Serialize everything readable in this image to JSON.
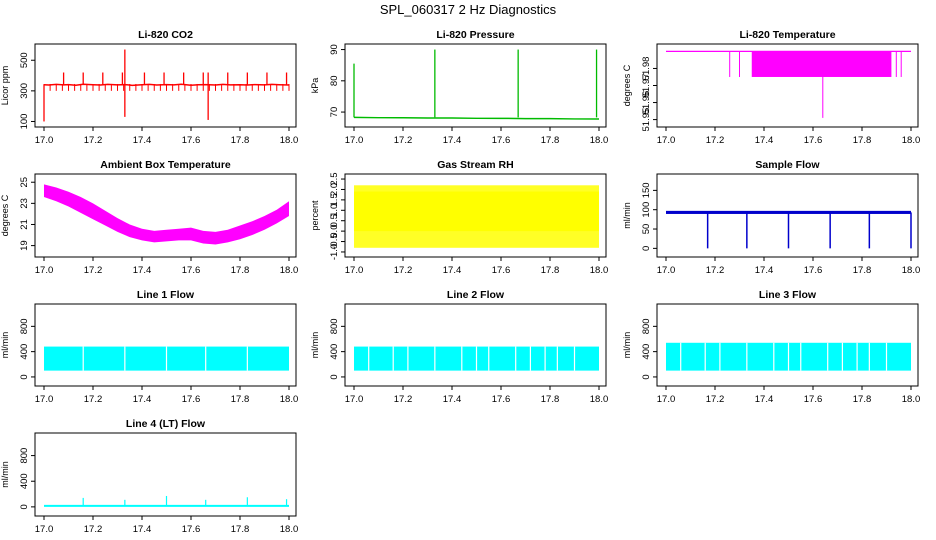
{
  "figure_title": "SPL_060317  2 Hz Diagnostics",
  "chart_data": [
    {
      "type": "line",
      "title": "Li-820 CO2",
      "ylabel": "Licor ppm",
      "color": "#ff0000",
      "x_ticks": [
        "17.0",
        "17.2",
        "17.4",
        "17.6",
        "17.8",
        "18.0"
      ],
      "x_range": [
        17.0,
        18.0
      ],
      "y_ticks": [
        {
          "v": 100,
          "label": "100"
        },
        {
          "v": 300,
          "label": "300"
        },
        {
          "v": 500,
          "label": "500"
        }
      ],
      "y_range": [
        90,
        580
      ],
      "series": {
        "x": [
          17.0,
          17.02,
          17.05,
          17.08,
          17.1,
          17.13,
          17.16,
          17.2,
          17.23,
          17.26,
          17.3,
          17.33,
          17.36,
          17.4,
          17.43,
          17.46,
          17.5,
          17.53,
          17.56,
          17.6,
          17.63,
          17.66,
          17.7,
          17.73,
          17.76,
          17.8,
          17.83,
          17.86,
          17.9,
          17.93,
          17.96,
          18.0
        ],
        "values": [
          340,
          338,
          342,
          339,
          341,
          337,
          343,
          340,
          338,
          342,
          339,
          341,
          336,
          340,
          342,
          338,
          341,
          339,
          343,
          337,
          340,
          341,
          338,
          342,
          339,
          340,
          338,
          341,
          339,
          342,
          340,
          338
        ],
        "spikes": [
          [
            17.0,
            100
          ],
          [
            17.08,
            420
          ],
          [
            17.16,
            420
          ],
          [
            17.24,
            420
          ],
          [
            17.32,
            420
          ],
          [
            17.33,
            570
          ],
          [
            17.33,
            130
          ],
          [
            17.41,
            420
          ],
          [
            17.49,
            420
          ],
          [
            17.57,
            420
          ],
          [
            17.65,
            420
          ],
          [
            17.67,
            420
          ],
          [
            17.67,
            110
          ],
          [
            17.75,
            420
          ],
          [
            17.83,
            420
          ],
          [
            17.91,
            420
          ],
          [
            17.99,
            420
          ]
        ]
      }
    },
    {
      "type": "line",
      "title": "Li-820 Pressure",
      "ylabel": "kPa",
      "color": "#00bb00",
      "x_ticks": [
        "17.0",
        "17.2",
        "17.4",
        "17.6",
        "17.8",
        "18.0"
      ],
      "x_range": [
        17.0,
        18.0
      ],
      "y_ticks": [
        {
          "v": 70,
          "label": "70"
        },
        {
          "v": 80,
          "label": "80"
        },
        {
          "v": 90,
          "label": "90"
        }
      ],
      "y_range": [
        66.5,
        90.5
      ],
      "series": {
        "x": [
          17.0,
          17.1,
          17.2,
          17.3,
          17.4,
          17.5,
          17.6,
          17.7,
          17.8,
          17.9,
          18.0
        ],
        "values": [
          68.3,
          68.2,
          68.2,
          68.1,
          68.1,
          68.0,
          68.0,
          67.9,
          67.9,
          67.8,
          67.8
        ],
        "spikes": [
          [
            17.0,
            85.5
          ],
          [
            17.33,
            90.0
          ],
          [
            17.67,
            90.0
          ],
          [
            17.99,
            90.0
          ]
        ]
      }
    },
    {
      "type": "area",
      "title": "Li-820 Temperature",
      "ylabel": "degrees C",
      "color": "#ff00ff",
      "x_ticks": [
        "17.0",
        "17.2",
        "17.4",
        "17.6",
        "17.8",
        "18.0"
      ],
      "x_range": [
        17.0,
        18.0
      ],
      "y_ticks": [
        {
          "v": 51.95,
          "label": "51.95"
        },
        {
          "v": 51.96,
          "label": "51.96"
        },
        {
          "v": 51.97,
          "label": "51.97"
        },
        {
          "v": 51.98,
          "label": "51.98"
        }
      ],
      "y_range": [
        51.948,
        51.992
      ],
      "series": {
        "baseline": 51.99,
        "band_low": 51.975,
        "band_start": 17.35,
        "band_end": 17.92,
        "min_spike": [
          17.64,
          51.951
        ]
      }
    },
    {
      "type": "area",
      "title": "Ambient Box Temperature",
      "ylabel": "degrees C",
      "color": "#ff00ff",
      "x_ticks": [
        "17.0",
        "17.2",
        "17.4",
        "17.6",
        "17.8",
        "18.0"
      ],
      "x_range": [
        17.0,
        18.0
      ],
      "y_ticks": [
        {
          "v": 19,
          "label": "19"
        },
        {
          "v": 21,
          "label": "21"
        },
        {
          "v": 23,
          "label": "23"
        },
        {
          "v": 25,
          "label": "25"
        }
      ],
      "y_range": [
        18.3,
        25.4
      ],
      "series": {
        "x": [
          17.0,
          17.05,
          17.1,
          17.15,
          17.2,
          17.25,
          17.3,
          17.35,
          17.4,
          17.45,
          17.5,
          17.55,
          17.6,
          17.65,
          17.7,
          17.75,
          17.8,
          17.85,
          17.9,
          17.95,
          18.0
        ],
        "upper": [
          24.8,
          24.5,
          24.1,
          23.6,
          23.0,
          22.3,
          21.6,
          21.0,
          20.6,
          20.4,
          20.5,
          20.6,
          20.7,
          20.4,
          20.3,
          20.5,
          20.9,
          21.3,
          21.8,
          22.4,
          23.2
        ],
        "lower": [
          23.6,
          23.2,
          22.7,
          22.1,
          21.5,
          20.9,
          20.3,
          19.8,
          19.5,
          19.3,
          19.4,
          19.5,
          19.5,
          19.2,
          19.1,
          19.3,
          19.6,
          20.0,
          20.5,
          21.1,
          21.8
        ]
      }
    },
    {
      "type": "area",
      "title": "Gas Stream RH",
      "ylabel": "percent",
      "color": "#ffff00",
      "x_ticks": [
        "17.0",
        "17.2",
        "17.4",
        "17.6",
        "17.8",
        "18.0"
      ],
      "x_range": [
        17.0,
        18.0
      ],
      "y_ticks": [
        {
          "v": -1,
          "label": "-1.0"
        },
        {
          "v": -0.5,
          "label": "-0.5"
        },
        {
          "v": 0,
          "label": "0.0"
        },
        {
          "v": 0.5,
          "label": "0.5"
        },
        {
          "v": 1,
          "label": "1.0"
        },
        {
          "v": 1.5,
          "label": "1.5"
        },
        {
          "v": 2,
          "label": "2.0"
        },
        {
          "v": 2.5,
          "label": "2.5"
        }
      ],
      "y_range": [
        -1.05,
        2.55
      ],
      "series": {
        "upper": 2.2,
        "lower": -0.8,
        "core_upper": 1.9,
        "core_lower": 0.0
      }
    },
    {
      "type": "line",
      "title": "Sample Flow",
      "ylabel": "ml/min",
      "color": "#0000cc",
      "x_ticks": [
        "17.0",
        "17.2",
        "17.4",
        "17.6",
        "17.8",
        "18.0"
      ],
      "x_range": [
        17.0,
        18.0
      ],
      "y_ticks": [
        {
          "v": 0,
          "label": "0"
        },
        {
          "v": 50,
          "label": "50"
        },
        {
          "v": 100,
          "label": "100"
        },
        {
          "v": 150,
          "label": "150"
        }
      ],
      "y_range": [
        -12,
        182
      ],
      "series": {
        "baseline": 93,
        "band": 4,
        "dips": [
          17.17,
          17.33,
          17.5,
          17.67,
          17.83,
          18.0
        ],
        "dip_value": 0
      }
    },
    {
      "type": "area",
      "title": "Line 1 Flow",
      "ylabel": "ml/min",
      "color": "#00ffff",
      "x_ticks": [
        "17.0",
        "17.2",
        "17.4",
        "17.6",
        "17.8",
        "18.0"
      ],
      "x_range": [
        17.0,
        18.0
      ],
      "y_ticks": [
        {
          "v": 0,
          "label": "0"
        },
        {
          "v": 400,
          "label": "400"
        },
        {
          "v": 800,
          "label": "800"
        }
      ],
      "y_range": [
        -80,
        1090
      ],
      "series": {
        "upper": 480,
        "lower": 100,
        "gaps": [
          17.16,
          17.33,
          17.5,
          17.66,
          17.83
        ]
      }
    },
    {
      "type": "area",
      "title": "Line 2 Flow",
      "ylabel": "ml/min",
      "color": "#00ffff",
      "x_ticks": [
        "17.0",
        "17.2",
        "17.4",
        "17.6",
        "17.8",
        "18.0"
      ],
      "x_range": [
        17.0,
        18.0
      ],
      "y_ticks": [
        {
          "v": 0,
          "label": "0"
        },
        {
          "v": 400,
          "label": "400"
        },
        {
          "v": 800,
          "label": "800"
        }
      ],
      "y_range": [
        -80,
        1090
      ],
      "series": {
        "upper": 480,
        "lower": 100,
        "gaps": [
          17.06,
          17.16,
          17.22,
          17.33,
          17.44,
          17.5,
          17.55,
          17.66,
          17.72,
          17.78,
          17.83,
          17.9
        ]
      }
    },
    {
      "type": "area",
      "title": "Line 3 Flow",
      "ylabel": "ml/min",
      "color": "#00ffff",
      "x_ticks": [
        "17.0",
        "17.2",
        "17.4",
        "17.6",
        "17.8",
        "18.0"
      ],
      "x_range": [
        17.0,
        18.0
      ],
      "y_ticks": [
        {
          "v": 0,
          "label": "0"
        },
        {
          "v": 400,
          "label": "400"
        },
        {
          "v": 800,
          "label": "800"
        }
      ],
      "y_range": [
        -80,
        1090
      ],
      "series": {
        "upper": 540,
        "lower": 100,
        "gaps": [
          17.06,
          17.16,
          17.22,
          17.33,
          17.44,
          17.5,
          17.55,
          17.66,
          17.72,
          17.78,
          17.83,
          17.9
        ]
      }
    },
    {
      "type": "line",
      "title": "Line 4 (LT) Flow",
      "ylabel": "ml/min",
      "color": "#00ffff",
      "x_ticks": [
        "17.0",
        "17.2",
        "17.4",
        "17.6",
        "17.8",
        "18.0"
      ],
      "x_range": [
        17.0,
        18.0
      ],
      "y_ticks": [
        {
          "v": 0,
          "label": "0"
        },
        {
          "v": 400,
          "label": "400"
        },
        {
          "v": 800,
          "label": "800"
        }
      ],
      "y_range": [
        -80,
        1090
      ],
      "series": {
        "baseline": 15,
        "spikes": [
          [
            17.16,
            140
          ],
          [
            17.33,
            110
          ],
          [
            17.5,
            170
          ],
          [
            17.66,
            110
          ],
          [
            17.83,
            150
          ],
          [
            17.99,
            120
          ]
        ]
      }
    }
  ]
}
